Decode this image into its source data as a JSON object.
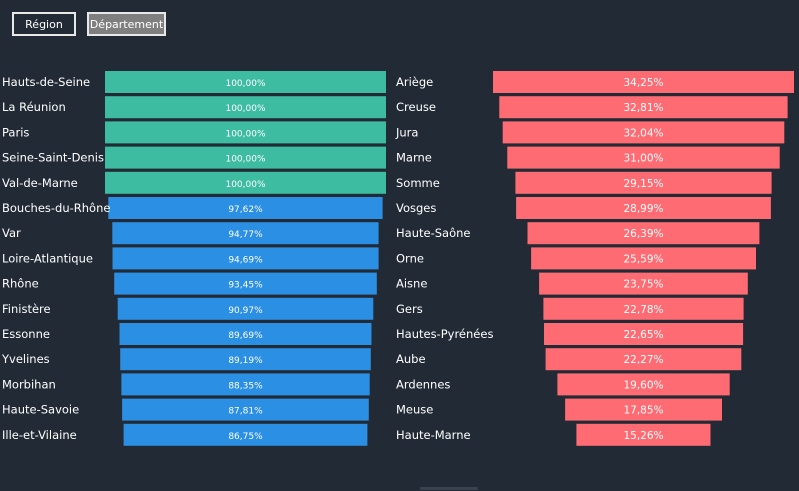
{
  "buttons": {
    "region": "Région",
    "departement": "Département"
  },
  "colors": {
    "top": "#3dbca2",
    "left": "#2b8fe3",
    "right": "#fe6b72",
    "background": "#222a35"
  },
  "chart_data": [
    {
      "type": "bar",
      "orientation": "horizontal-funnel",
      "xlim": [
        0,
        100
      ],
      "categories": [
        "Hauts-de-Seine",
        "La Réunion",
        "Paris",
        "Seine-Saint-Denis",
        "Val-de-Marne",
        "Bouches-du-Rhône",
        "Var",
        "Loire-Atlantique",
        "Rhône",
        "Finistère",
        "Essonne",
        "Yvelines",
        "Morbihan",
        "Haute-Savoie",
        "Ille-et-Vilaine"
      ],
      "values": [
        100.0,
        100.0,
        100.0,
        100.0,
        100.0,
        97.62,
        94.77,
        94.69,
        93.45,
        90.97,
        89.69,
        89.19,
        88.35,
        87.81,
        86.75
      ],
      "value_labels": [
        "100,00%",
        "100,00%",
        "100,00%",
        "100,00%",
        "100,00%",
        "97,62%",
        "94,77%",
        "94,69%",
        "93,45%",
        "90,97%",
        "89,69%",
        "89,19%",
        "88,35%",
        "87,81%",
        "86,75%"
      ],
      "highlight_count": 5
    },
    {
      "type": "bar",
      "orientation": "horizontal-funnel",
      "xlim": [
        0,
        34.25
      ],
      "categories": [
        "Ariège",
        "Creuse",
        "Jura",
        "Marne",
        "Somme",
        "Vosges",
        "Haute-Saône",
        "Orne",
        "Aisne",
        "Gers",
        "Hautes-Pyrénées",
        "Aube",
        "Ardennes",
        "Meuse",
        "Haute-Marne"
      ],
      "values": [
        34.25,
        32.81,
        32.04,
        31.0,
        29.15,
        28.99,
        26.39,
        25.59,
        23.75,
        22.78,
        22.65,
        22.27,
        19.6,
        17.85,
        15.26
      ],
      "value_labels": [
        "34,25%",
        "32,81%",
        "32,04%",
        "31,00%",
        "29,15%",
        "28,99%",
        "26,39%",
        "25,59%",
        "23,75%",
        "22,78%",
        "22,65%",
        "22,27%",
        "19,60%",
        "17,85%",
        "15,26%"
      ]
    }
  ]
}
